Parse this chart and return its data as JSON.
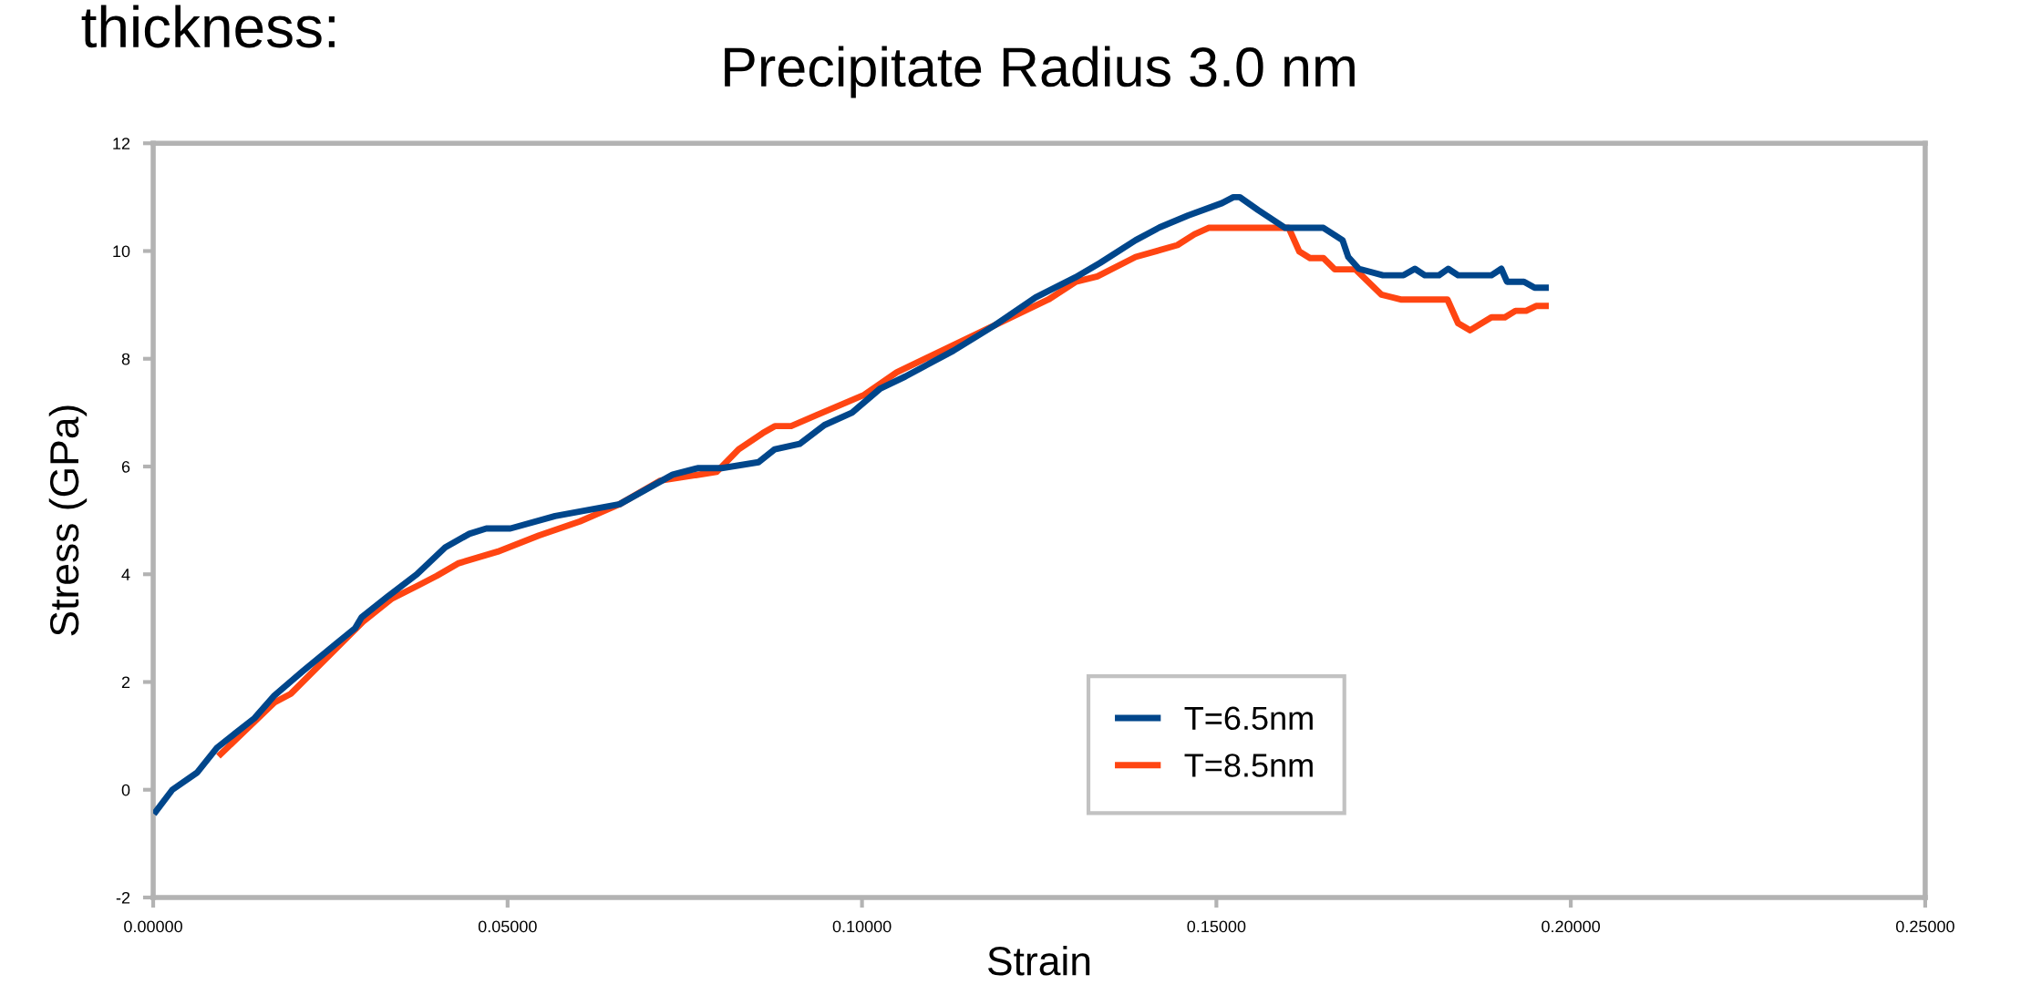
{
  "chart_data": {
    "type": "line",
    "title": "Precipitate Radius 3.0 nm",
    "xlabel": "Strain",
    "ylabel": "Stress (GPa)",
    "annotations": [
      "thickness:"
    ],
    "xlim": [
      0,
      0.25
    ],
    "xticks": [
      {
        "value": 0,
        "label": "0.00000"
      },
      {
        "value": 0.05,
        "label": "0.05000"
      },
      {
        "value": 0.1,
        "label": "0.10000"
      },
      {
        "value": 0.15,
        "label": "0.15000"
      },
      {
        "value": 0.2,
        "label": "0.20000"
      },
      {
        "value": 0.25,
        "label": "0.25000"
      }
    ],
    "ylim": [
      -2,
      12
    ],
    "yticks": [
      -2,
      0,
      2,
      4,
      6,
      8,
      10,
      12
    ],
    "grid": false,
    "legend": "bottom",
    "marker": "none",
    "line_style": "solid",
    "series": [
      {
        "name": "T=6.5nm",
        "color": "#00468b",
        "x": [
          0.0001,
          0.0027,
          0.0062,
          0.009,
          0.0143,
          0.0171,
          0.0211,
          0.0257,
          0.0285,
          0.0294,
          0.0332,
          0.0372,
          0.0412,
          0.0446,
          0.047,
          0.0504,
          0.0567,
          0.0658,
          0.0733,
          0.0768,
          0.0802,
          0.0854,
          0.0877,
          0.0912,
          0.0947,
          0.0986,
          0.1026,
          0.1061,
          0.1129,
          0.1187,
          0.1245,
          0.1301,
          0.1336,
          0.1386,
          0.142,
          0.146,
          0.1508,
          0.1524,
          0.1533,
          0.1559,
          0.1597,
          0.1651,
          0.1678,
          0.1686,
          0.1701,
          0.1735,
          0.1764,
          0.178,
          0.1794,
          0.1814,
          0.1827,
          0.1841,
          0.1888,
          0.1902,
          0.191,
          0.1934,
          0.1949,
          0.1969
        ],
        "values": [
          -0.45,
          0,
          0.32,
          0.78,
          1.33,
          1.75,
          2.2,
          2.7,
          3.0,
          3.2,
          3.6,
          4.0,
          4.5,
          4.75,
          4.85,
          4.85,
          5.08,
          5.3,
          5.85,
          5.97,
          5.97,
          6.08,
          6.32,
          6.42,
          6.77,
          7.0,
          7.45,
          7.67,
          8.15,
          8.62,
          9.14,
          9.51,
          9.78,
          10.2,
          10.44,
          10.66,
          10.89,
          11.0,
          11.0,
          10.76,
          10.43,
          10.43,
          10.2,
          9.89,
          9.67,
          9.55,
          9.55,
          9.67,
          9.55,
          9.55,
          9.67,
          9.55,
          9.55,
          9.67,
          9.43,
          9.43,
          9.32,
          9.32
        ]
      },
      {
        "name": "T=8.5nm",
        "color": "#ff4512",
        "x": [
          0.0092,
          0.0171,
          0.0194,
          0.0296,
          0.0337,
          0.0372,
          0.04,
          0.043,
          0.0486,
          0.0544,
          0.0602,
          0.0658,
          0.0716,
          0.0795,
          0.0826,
          0.086,
          0.0877,
          0.09,
          0.0935,
          0.1003,
          0.1049,
          0.1263,
          0.1302,
          0.1332,
          0.1386,
          0.1445,
          0.1469,
          0.1489,
          0.1602,
          0.1617,
          0.1632,
          0.1651,
          0.1667,
          0.1696,
          0.1733,
          0.176,
          0.1826,
          0.1841,
          0.1858,
          0.1888,
          0.1907,
          0.1922,
          0.1937,
          0.1951,
          0.1969
        ],
        "values": [
          0.62,
          1.62,
          1.78,
          3.12,
          3.55,
          3.78,
          3.97,
          4.2,
          4.42,
          4.72,
          4.98,
          5.3,
          5.74,
          5.9,
          6.32,
          6.62,
          6.75,
          6.75,
          6.95,
          7.33,
          7.75,
          9.1,
          9.43,
          9.53,
          9.89,
          10.11,
          10.31,
          10.43,
          10.43,
          9.99,
          9.87,
          9.87,
          9.66,
          9.66,
          9.19,
          9.1,
          9.1,
          8.66,
          8.53,
          8.77,
          8.77,
          8.89,
          8.89,
          8.98,
          8.98
        ]
      }
    ]
  }
}
